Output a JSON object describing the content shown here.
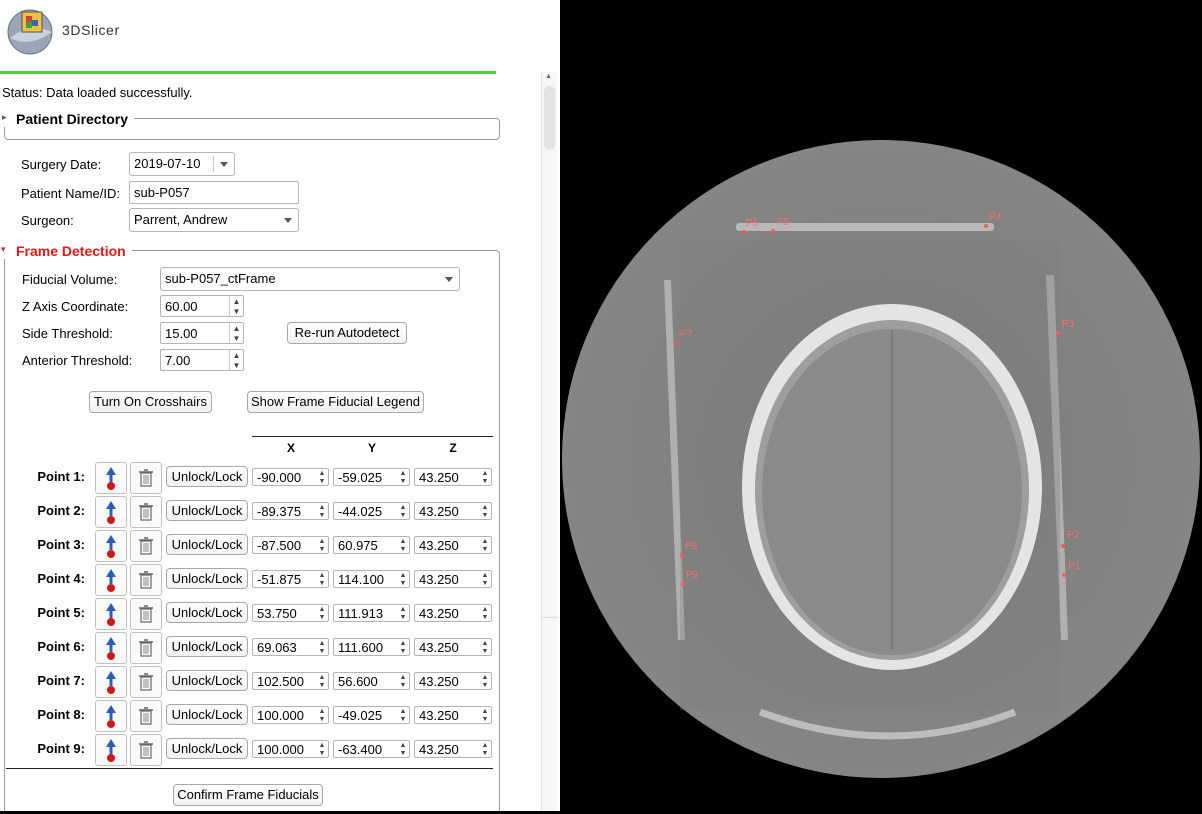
{
  "app": {
    "name": "3DSlicer"
  },
  "status": {
    "text": "Status: Data loaded successfully."
  },
  "patient_directory": {
    "title": "Patient Directory"
  },
  "patient_info": {
    "surgery_date_label": "Surgery Date:",
    "surgery_date_value": "2019-07-10",
    "patient_name_label": "Patient Name/ID:",
    "patient_name_value": "sub-P057",
    "surgeon_label": "Surgeon:",
    "surgeon_value": "Parrent, Andrew"
  },
  "frame_detection": {
    "title": "Frame Detection",
    "fiducial_volume_label": "Fiducial Volume:",
    "fiducial_volume_value": "sub-P057_ctFrame",
    "z_axis_label": "Z Axis Coordinate:",
    "z_axis_value": "60.00",
    "side_threshold_label": "Side Threshold:",
    "side_threshold_value": "15.00",
    "anterior_threshold_label": "Anterior Threshold:",
    "anterior_threshold_value": "7.00",
    "rerun_button": "Re-run Autodetect",
    "crosshairs_button": "Turn On Crosshairs",
    "legend_button": "Show Frame Fiducial Legend",
    "columns": [
      "X",
      "Y",
      "Z"
    ],
    "unlock_label": "Unlock/Lock",
    "confirm_button": "Confirm Frame Fiducials",
    "points": [
      {
        "label": "Point 1:",
        "x": "-90.000",
        "y": "-59.025",
        "z": "43.250"
      },
      {
        "label": "Point 2:",
        "x": "-89.375",
        "y": "-44.025",
        "z": "43.250"
      },
      {
        "label": "Point 3:",
        "x": "-87.500",
        "y": "60.975",
        "z": "43.250"
      },
      {
        "label": "Point 4:",
        "x": "-51.875",
        "y": "114.100",
        "z": "43.250"
      },
      {
        "label": "Point 5:",
        "x": "53.750",
        "y": "111.913",
        "z": "43.250"
      },
      {
        "label": "Point 6:",
        "x": "69.063",
        "y": "111.600",
        "z": "43.250"
      },
      {
        "label": "Point 7:",
        "x": "102.500",
        "y": "56.600",
        "z": "43.250"
      },
      {
        "label": "Point 8:",
        "x": "100.000",
        "y": "-49.025",
        "z": "43.250"
      },
      {
        "label": "Point 9:",
        "x": "100.000",
        "y": "-63.400",
        "z": "43.250"
      }
    ]
  },
  "viewer": {
    "fiducial_labels": [
      "P1",
      "P2",
      "P3",
      "P4",
      "P5",
      "P6",
      "P7",
      "P8",
      "P9"
    ]
  }
}
